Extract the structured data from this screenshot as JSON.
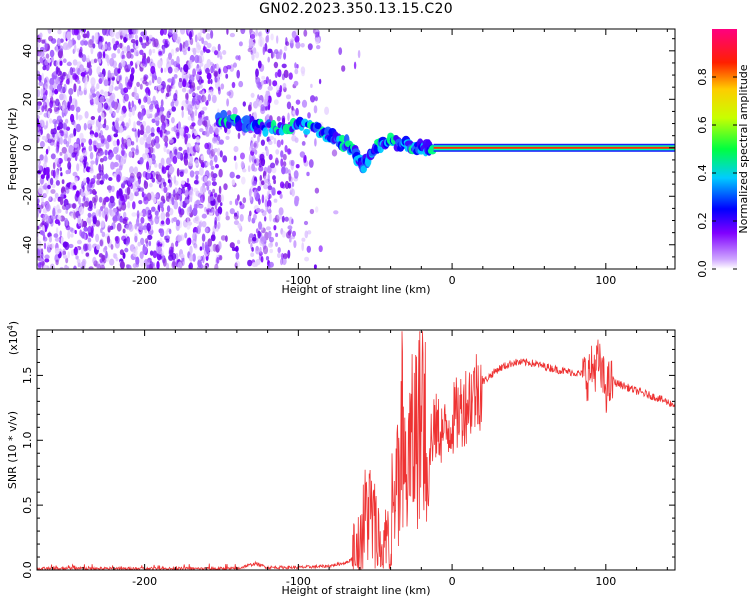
{
  "title": "GN02.2023.350.13.15.C20",
  "chart_data": [
    {
      "type": "heatmap",
      "xlabel": "Height of straight line (km)",
      "ylabel": "Frequency (Hz)",
      "xlim": [
        -270,
        145
      ],
      "ylim": [
        -50,
        49
      ],
      "xticks": [
        -200,
        -100,
        0,
        100
      ],
      "yticks": [
        -40,
        -20,
        0,
        20,
        40
      ],
      "colorbar": {
        "label": "Normalized spectral amplitude",
        "ticks": [
          "0.0",
          "0.2",
          "0.4",
          "0.6",
          "0.8"
        ],
        "range": [
          0,
          1
        ],
        "colors": [
          "#ffffff",
          "#7f00ff",
          "#0000ff",
          "#00ffff",
          "#00ff00",
          "#ffff00",
          "#ff0000",
          "#ff0080"
        ]
      },
      "signal_track": [
        {
          "x": -152,
          "y": 12
        },
        {
          "x": -140,
          "y": 11
        },
        {
          "x": -130,
          "y": 9
        },
        {
          "x": -115,
          "y": 8
        },
        {
          "x": -100,
          "y": 9
        },
        {
          "x": -85,
          "y": 7
        },
        {
          "x": -75,
          "y": 4
        },
        {
          "x": -65,
          "y": 0
        },
        {
          "x": -58,
          "y": -8
        },
        {
          "x": -50,
          "y": 0
        },
        {
          "x": -40,
          "y": 3
        },
        {
          "x": -30,
          "y": 1
        },
        {
          "x": -20,
          "y": 0
        },
        {
          "x": -12,
          "y": 0
        },
        {
          "x": 0,
          "y": 0
        },
        {
          "x": 50,
          "y": 0
        },
        {
          "x": 100,
          "y": 0
        },
        {
          "x": 145,
          "y": 0
        }
      ]
    },
    {
      "type": "line",
      "xlabel": "Height of straight line (km)",
      "ylabel": "SNR (10 * v/v)",
      "yscale_label": "(x10",
      "yscale_exp": "4",
      "yscale_close": ")",
      "xlim": [
        -270,
        145
      ],
      "ylim": [
        0,
        1.85
      ],
      "xticks": [
        -200,
        -100,
        0,
        100
      ],
      "yticks": [
        "0.0",
        "0.5",
        "1.0",
        "1.5"
      ],
      "color": "#ee3333",
      "series": [
        {
          "points": [
            [
              -270,
              0.01
            ],
            [
              -200,
              0.01
            ],
            [
              -140,
              0.01
            ],
            [
              -128,
              0.05
            ],
            [
              -120,
              0.02
            ],
            [
              -100,
              0.02
            ],
            [
              -80,
              0.03
            ],
            [
              -68,
              0.06
            ],
            [
              -60,
              0.15
            ],
            [
              -55,
              0.5
            ],
            [
              -50,
              0.3
            ],
            [
              -45,
              0.15
            ],
            [
              -40,
              0.25
            ],
            [
              -35,
              0.6
            ],
            [
              -30,
              0.75
            ],
            [
              -25,
              1.0
            ],
            [
              -20,
              1.2
            ],
            [
              -15,
              1.0
            ],
            [
              -10,
              1.1
            ],
            [
              -5,
              1.05
            ],
            [
              0,
              1.15
            ],
            [
              10,
              1.3
            ],
            [
              20,
              1.45
            ],
            [
              30,
              1.55
            ],
            [
              40,
              1.6
            ],
            [
              50,
              1.6
            ],
            [
              60,
              1.57
            ],
            [
              70,
              1.54
            ],
            [
              80,
              1.52
            ],
            [
              88,
              1.5
            ],
            [
              95,
              1.6
            ],
            [
              100,
              1.4
            ],
            [
              105,
              1.45
            ],
            [
              120,
              1.38
            ],
            [
              135,
              1.32
            ],
            [
              145,
              1.27
            ]
          ]
        }
      ]
    }
  ]
}
